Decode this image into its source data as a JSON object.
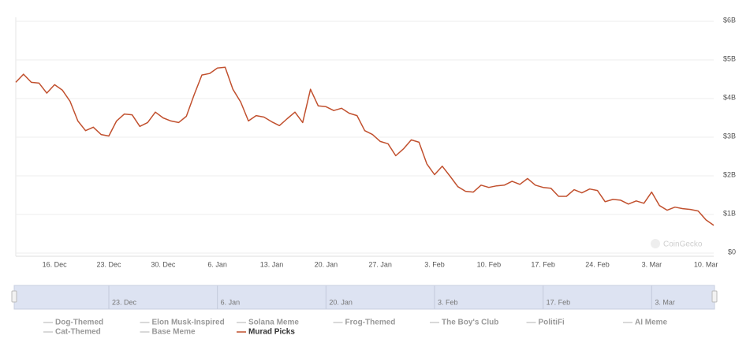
{
  "chart_data": {
    "type": "line",
    "categories": [
      null,
      null,
      null,
      null,
      null,
      "16. Dec",
      null,
      null,
      null,
      null,
      null,
      null,
      "23. Dec",
      null,
      null,
      null,
      null,
      null,
      null,
      "30. Dec",
      null,
      null,
      null,
      null,
      null,
      null,
      "6. Jan",
      null,
      null,
      null,
      null,
      null,
      null,
      "13. Jan",
      null,
      null,
      null,
      null,
      null,
      null,
      "20. Jan",
      null,
      null,
      null,
      null,
      null,
      null,
      "27. Jan",
      null,
      null,
      null,
      null,
      null,
      null,
      "3. Feb",
      null,
      null,
      null,
      null,
      null,
      null,
      "10. Feb",
      null,
      null,
      null,
      null,
      null,
      null,
      "17. Feb",
      null,
      null,
      null,
      null,
      null,
      null,
      "24. Feb",
      null,
      null,
      null,
      null,
      null,
      null,
      "3. Mar",
      null,
      null,
      null,
      null,
      null,
      null,
      "10. Mar",
      null
    ],
    "series": [
      {
        "name": "Murad Picks",
        "color": "#c1502e",
        "values": [
          4420000000.0,
          4630000000.0,
          4420000000.0,
          4400000000.0,
          4140000000.0,
          4360000000.0,
          4220000000.0,
          3930000000.0,
          3420000000.0,
          3170000000.0,
          3260000000.0,
          3070000000.0,
          3030000000.0,
          3420000000.0,
          3600000000.0,
          3580000000.0,
          3280000000.0,
          3380000000.0,
          3650000000.0,
          3500000000.0,
          3420000000.0,
          3380000000.0,
          3540000000.0,
          4100000000.0,
          4610000000.0,
          4650000000.0,
          4790000000.0,
          4810000000.0,
          4240000000.0,
          3910000000.0,
          3420000000.0,
          3560000000.0,
          3520000000.0,
          3400000000.0,
          3300000000.0,
          3480000000.0,
          3650000000.0,
          3380000000.0,
          4240000000.0,
          3810000000.0,
          3790000000.0,
          3690000000.0,
          3750000000.0,
          3620000000.0,
          3560000000.0,
          3170000000.0,
          3070000000.0,
          2890000000.0,
          2830000000.0,
          2520000000.0,
          2700000000.0,
          2930000000.0,
          2870000000.0,
          2310000000.0,
          2030000000.0,
          2250000000.0,
          1990000000.0,
          1720000000.0,
          1600000000.0,
          1580000000.0,
          1760000000.0,
          1700000000.0,
          1740000000.0,
          1760000000.0,
          1860000000.0,
          1780000000.0,
          1930000000.0,
          1760000000.0,
          1700000000.0,
          1680000000.0,
          1470000000.0,
          1470000000.0,
          1640000000.0,
          1560000000.0,
          1660000000.0,
          1620000000.0,
          1330000000.0,
          1390000000.0,
          1370000000.0,
          1270000000.0,
          1350000000.0,
          1290000000.0,
          1580000000.0,
          1230000000.0,
          1110000000.0,
          1190000000.0,
          1150000000.0,
          1130000000.0,
          1090000000.0,
          860000000.0,
          720000000.0
        ]
      }
    ],
    "ylim": [
      0,
      6000000000
    ],
    "yticks": [
      {
        "value": 0,
        "label": "$0"
      },
      {
        "value": 1000000000,
        "label": "$1B"
      },
      {
        "value": 2000000000,
        "label": "$2B"
      },
      {
        "value": 3000000000,
        "label": "$3B"
      },
      {
        "value": 4000000000,
        "label": "$4B"
      },
      {
        "value": 5000000000,
        "label": "$5B"
      },
      {
        "value": 6000000000,
        "label": "$6B"
      }
    ],
    "grid": true,
    "watermark": "CoinGecko",
    "navigator": {
      "labels": [
        "23. Dec",
        "6. Jan",
        "20. Jan",
        "3. Feb",
        "17. Feb",
        "3. Mar"
      ]
    },
    "legend": [
      {
        "name": "Dog-Themed",
        "visible": false
      },
      {
        "name": "Elon Musk-Inspired",
        "visible": false
      },
      {
        "name": "Solana Meme",
        "visible": false
      },
      {
        "name": "Frog-Themed",
        "visible": false
      },
      {
        "name": "The Boy's Club",
        "visible": false
      },
      {
        "name": "PolitiFi",
        "visible": false
      },
      {
        "name": "AI Meme",
        "visible": false
      },
      {
        "name": "Cat-Themed",
        "visible": false
      },
      {
        "name": "Base Meme",
        "visible": false
      },
      {
        "name": "Murad Picks",
        "visible": true
      }
    ]
  }
}
